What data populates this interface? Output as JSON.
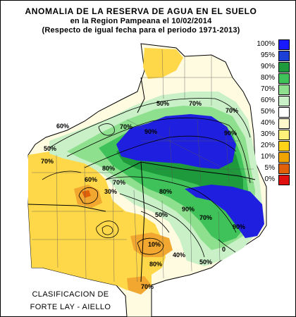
{
  "title": {
    "line1": "ANOMALIA DE LA RESERVA DE AGUA EN EL SUELO",
    "line2": "en la Region Pampeana el   10/02/2014",
    "line3": "(Respecto de igual fecha para el periodo 1971-2013)"
  },
  "legend": [
    {
      "label": "100%",
      "color": "#1a1aff"
    },
    {
      "label": "95%",
      "color": "#1c3fd6"
    },
    {
      "label": "90%",
      "color": "#1e9a3c"
    },
    {
      "label": "80%",
      "color": "#3fc25a"
    },
    {
      "label": "70%",
      "color": "#8ee08e"
    },
    {
      "label": "60%",
      "color": "#c9f0c6"
    },
    {
      "label": "50%",
      "color": "#ffffff"
    },
    {
      "label": "40%",
      "color": "#fff8cc"
    },
    {
      "label": "30%",
      "color": "#fff27a"
    },
    {
      "label": "20%",
      "color": "#ffd21a"
    },
    {
      "label": "10%",
      "color": "#f0a400"
    },
    {
      "label": "5%",
      "color": "#e0600a"
    },
    {
      "label": "0%",
      "color": "#e01010"
    }
  ],
  "contour_labels": [
    "50%",
    "70%",
    "90%",
    "80%",
    "60%",
    "40%",
    "30%",
    "10%",
    "0"
  ],
  "credit": {
    "line1": "CLASIFICACION DE",
    "line2": "FORTE LAY - AIELLO"
  },
  "colors": {
    "blue": "#1f1fe0",
    "dark_green": "#22a046",
    "green": "#4cc864",
    "light_green": "#a6e6a6",
    "pale": "#fffbe0",
    "yellow": "#ffd84a",
    "orange": "#f2a830"
  }
}
